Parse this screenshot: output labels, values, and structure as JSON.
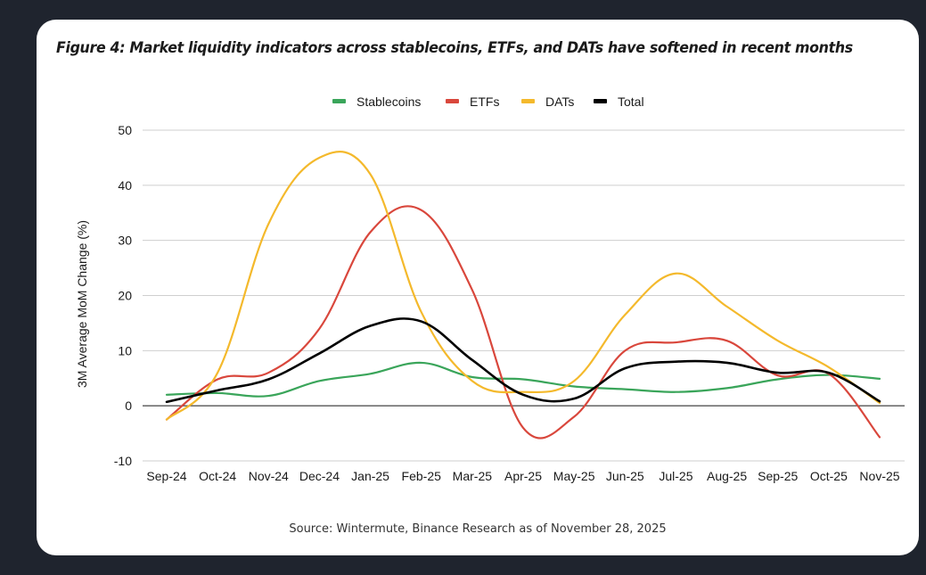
{
  "figure": {
    "title": "Figure 4: Market liquidity indicators across stablecoins, ETFs, and DATs have softened in recent months",
    "source": "Source: Wintermute, Binance Research as of November 28, 2025"
  },
  "chart_data": {
    "type": "line",
    "title": "Figure 4: Market liquidity indicators across stablecoins, ETFs, and DATs have softened in recent months",
    "xlabel": "",
    "ylabel": "3M Average MoM Change (%)",
    "ylim": [
      -10,
      50
    ],
    "yticks": [
      -10,
      0,
      10,
      20,
      30,
      40,
      50
    ],
    "grid": true,
    "legend_position": "top-center",
    "smooth": true,
    "x": [
      "Sep-24",
      "Oct-24",
      "Nov-24",
      "Dec-24",
      "Jan-25",
      "Feb-25",
      "Mar-25",
      "Apr-25",
      "May-25",
      "Jun-25",
      "Jul-25",
      "Aug-25",
      "Sep-25",
      "Oct-25",
      "Nov-25"
    ],
    "series": [
      {
        "name": "Stablecoins",
        "color": "#3aa55a",
        "values": [
          2.0,
          2.3,
          1.8,
          4.5,
          5.8,
          7.8,
          5.2,
          4.8,
          3.5,
          3.0,
          2.5,
          3.2,
          4.8,
          5.6,
          4.9
        ]
      },
      {
        "name": "ETFs",
        "color": "#d9473c",
        "values": [
          -2.5,
          4.8,
          6.0,
          14.0,
          31.5,
          35.5,
          21.0,
          -4.0,
          -2.0,
          10.0,
          11.5,
          11.8,
          5.5,
          5.8,
          -5.7
        ]
      },
      {
        "name": "DATs",
        "color": "#f4b92c",
        "values": [
          -2.5,
          6.0,
          33.0,
          45.0,
          42.0,
          17.0,
          4.5,
          2.5,
          4.5,
          16.5,
          24.0,
          18.0,
          11.8,
          7.0,
          0.5
        ]
      },
      {
        "name": "Total",
        "color": "#000000",
        "values": [
          0.7,
          2.8,
          4.8,
          9.5,
          14.5,
          15.3,
          8.3,
          2.0,
          1.3,
          6.8,
          8.0,
          7.8,
          6.0,
          6.0,
          0.8
        ]
      }
    ]
  }
}
